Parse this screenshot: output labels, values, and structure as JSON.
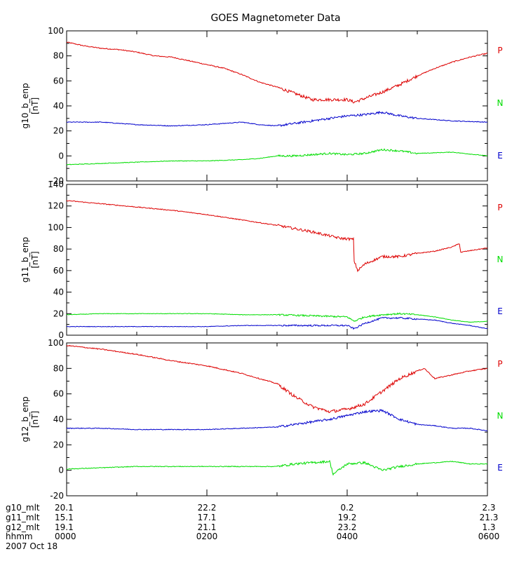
{
  "title": "GOES Magnetometer Data",
  "colors": {
    "P": "#dd0000",
    "N": "#0000cc",
    "E": "#00dd00",
    "axis": "#000000"
  },
  "chart_data": [
    {
      "type": "line",
      "ylabel": "g10_b_enp",
      "yunit": "[nT]",
      "ylim": [
        -20,
        100
      ],
      "yticks": [
        -20,
        0,
        20,
        40,
        60,
        80,
        100
      ],
      "labels": [
        {
          "text": "P",
          "color": "#dd0000"
        },
        {
          "text": "N",
          "color": "#00dd00"
        },
        {
          "text": "E",
          "color": "#0000cc"
        }
      ],
      "series": [
        {
          "name": "P",
          "color": "#dd0000",
          "noise": 0.8,
          "x": [
            0,
            0.25,
            0.5,
            0.75,
            1,
            1.25,
            1.5,
            1.75,
            2,
            2.25,
            2.5,
            2.75,
            3,
            3.25,
            3.5,
            3.75,
            4,
            4.1,
            4.25,
            4.5,
            4.75,
            5,
            5.25,
            5.5,
            5.75,
            6
          ],
          "y": [
            91,
            88,
            86,
            85,
            83,
            80,
            79,
            76,
            73,
            70,
            65,
            59,
            55,
            50,
            45,
            45,
            45,
            43,
            46,
            51,
            57,
            64,
            70,
            75,
            79,
            82
          ]
        },
        {
          "name": "N",
          "color": "#0000cc",
          "noise": 0.6,
          "x": [
            0,
            0.5,
            1,
            1.5,
            2,
            2.5,
            2.75,
            3,
            3.25,
            3.5,
            3.75,
            4,
            4.25,
            4.5,
            4.75,
            5,
            5.25,
            5.5,
            6
          ],
          "y": [
            27,
            27,
            25,
            24,
            25,
            27,
            25,
            24,
            26,
            28,
            30,
            32,
            33,
            35,
            32,
            30,
            29,
            28,
            27
          ]
        },
        {
          "name": "E",
          "color": "#00dd00",
          "noise": 0.5,
          "x": [
            0,
            0.5,
            1,
            1.5,
            2,
            2.5,
            2.75,
            3,
            3.25,
            3.5,
            3.75,
            4,
            4.25,
            4.5,
            4.75,
            5,
            5.5,
            6
          ],
          "y": [
            -7,
            -6,
            -5,
            -4,
            -4,
            -3,
            -2,
            0,
            0,
            1,
            2,
            1,
            2,
            5,
            4,
            2,
            3,
            0
          ]
        }
      ]
    },
    {
      "type": "line",
      "ylabel": "g11_b_enp",
      "yunit": "[nT]",
      "ylim": [
        0,
        140
      ],
      "yticks": [
        0,
        20,
        40,
        60,
        80,
        100,
        120,
        140
      ],
      "labels": [
        {
          "text": "P",
          "color": "#dd0000"
        },
        {
          "text": "N",
          "color": "#00dd00"
        },
        {
          "text": "E",
          "color": "#0000cc"
        }
      ],
      "series": [
        {
          "name": "P",
          "color": "#dd0000",
          "noise": 0.8,
          "x": [
            0,
            0.5,
            1,
            1.5,
            2,
            2.5,
            3,
            3.5,
            3.9,
            4.09,
            4.1,
            4.15,
            4.25,
            4.5,
            4.75,
            5,
            5.25,
            5.5,
            5.6,
            5.62,
            5.8,
            6
          ],
          "y": [
            125,
            122,
            119,
            116,
            112,
            107,
            102,
            96,
            90,
            89,
            69,
            60,
            66,
            73,
            73,
            76,
            78,
            82,
            85,
            77,
            79,
            81
          ]
        },
        {
          "name": "N",
          "color": "#00dd00",
          "noise": 0.5,
          "x": [
            0,
            0.5,
            1,
            1.5,
            2,
            2.5,
            3,
            3.5,
            4,
            4.1,
            4.25,
            4.5,
            4.75,
            5,
            5.25,
            5.5,
            5.75,
            6
          ],
          "y": [
            19,
            20,
            20,
            20,
            20,
            19,
            19,
            18,
            17,
            13,
            17,
            19,
            20,
            19,
            17,
            14,
            12,
            13
          ]
        },
        {
          "name": "E",
          "color": "#0000cc",
          "noise": 0.5,
          "x": [
            0,
            0.5,
            1,
            1.5,
            2,
            2.5,
            3,
            3.5,
            4,
            4.1,
            4.25,
            4.5,
            4.75,
            5,
            5.25,
            5.5,
            5.75,
            6
          ],
          "y": [
            8,
            8,
            8,
            8,
            8,
            9,
            9,
            9,
            9,
            6,
            11,
            16,
            16,
            15,
            14,
            11,
            9,
            6
          ]
        }
      ]
    },
    {
      "type": "line",
      "ylabel": "g12_b_enp",
      "yunit": "[nT]",
      "ylim": [
        -20,
        100
      ],
      "yticks": [
        -20,
        0,
        20,
        40,
        60,
        80,
        100
      ],
      "labels": [
        {
          "text": "P",
          "color": "#dd0000"
        },
        {
          "text": "N",
          "color": "#00dd00"
        },
        {
          "text": "E",
          "color": "#0000cc"
        }
      ],
      "series": [
        {
          "name": "P",
          "color": "#dd0000",
          "noise": 0.8,
          "x": [
            0,
            0.5,
            1,
            1.5,
            2,
            2.5,
            3,
            3.25,
            3.5,
            3.75,
            4,
            4.25,
            4.5,
            4.75,
            5,
            5.1,
            5.25,
            5.5,
            5.75,
            6
          ],
          "y": [
            98,
            95,
            91,
            86,
            82,
            76,
            68,
            58,
            50,
            46,
            48,
            52,
            62,
            72,
            78,
            80,
            72,
            75,
            78,
            80
          ]
        },
        {
          "name": "N",
          "color": "#0000cc",
          "noise": 0.6,
          "x": [
            0,
            0.5,
            1,
            1.5,
            2,
            2.5,
            3,
            3.25,
            3.5,
            3.75,
            4,
            4.25,
            4.5,
            4.75,
            5,
            5.25,
            5.5,
            5.75,
            6
          ],
          "y": [
            33,
            33,
            32,
            32,
            32,
            33,
            34,
            36,
            38,
            40,
            43,
            46,
            47,
            40,
            36,
            35,
            33,
            33,
            31
          ]
        },
        {
          "name": "E",
          "color": "#00dd00",
          "noise": 0.6,
          "x": [
            0,
            0.5,
            1,
            1.5,
            2,
            2.5,
            3,
            3.25,
            3.5,
            3.75,
            3.8,
            4,
            4.25,
            4.5,
            4.75,
            5,
            5.25,
            5.5,
            5.75,
            6
          ],
          "y": [
            1,
            2,
            3,
            3,
            3,
            3,
            3,
            5,
            6,
            7,
            -3,
            5,
            6,
            0,
            3,
            5,
            6,
            7,
            5,
            5
          ]
        }
      ]
    }
  ],
  "x_axis": {
    "xlim": [
      0,
      6
    ],
    "major_ticks": [
      0,
      2,
      4,
      6
    ],
    "minor_ticks": [
      1,
      3,
      5
    ],
    "rows": [
      {
        "label": "g10_mlt",
        "values": [
          "20.1",
          "22.2",
          "0.2",
          "2.3"
        ]
      },
      {
        "label": "g11_mlt",
        "values": [
          "15.1",
          "17.1",
          "19.2",
          "21.3"
        ]
      },
      {
        "label": "g12_mlt",
        "values": [
          "19.1",
          "21.1",
          "23.2",
          "1.3"
        ]
      },
      {
        "label": "hhmm",
        "values": [
          "0000",
          "0200",
          "0400",
          "0600"
        ]
      }
    ],
    "date": "2007 Oct 18"
  }
}
